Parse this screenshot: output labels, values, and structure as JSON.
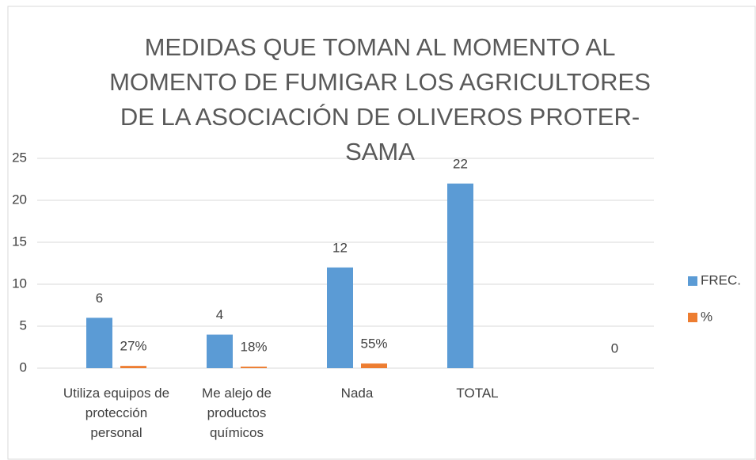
{
  "chart_data": {
    "type": "bar",
    "title": "MEDIDAS QUE TOMAN AL MOMENTO AL MOMENTO DE FUMIGAR LOS AGRICULTORES DE LA ASOCIACIÓN DE OLIVEROS PROTER-SAMA",
    "categories": [
      "Utiliza equipos de protección personal",
      "Me alejo de productos químicos",
      "Nada",
      "TOTAL",
      null
    ],
    "series": [
      {
        "name": "FREC.",
        "color": "#5b9bd5",
        "values": [
          6,
          4,
          12,
          22,
          null
        ],
        "value_labels": [
          "6",
          "4",
          "12",
          "22",
          null
        ]
      },
      {
        "name": "%",
        "color": "#ed7d31",
        "values": [
          0.27,
          0.18,
          0.55,
          null,
          0
        ],
        "value_labels": [
          "27%",
          "18%",
          "55%",
          null,
          "0"
        ]
      }
    ],
    "ylim": [
      0,
      25
    ],
    "yticks": [
      0,
      5,
      10,
      15,
      20,
      25
    ],
    "grid": true,
    "legend": "right"
  }
}
